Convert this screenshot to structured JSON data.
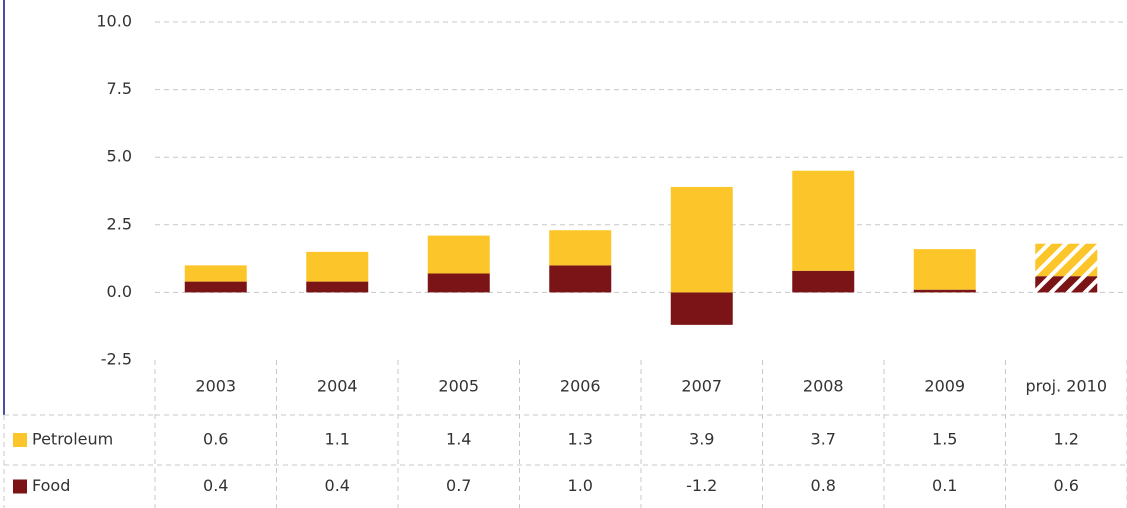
{
  "chart_data": {
    "type": "stacked-bar",
    "categories": [
      "2003",
      "2004",
      "2005",
      "2006",
      "2007",
      "2008",
      "2009",
      "proj. 2010"
    ],
    "series": [
      {
        "name": "Petroleum",
        "color": "#fcc62a",
        "values": [
          0.6,
          1.1,
          1.4,
          1.3,
          3.9,
          3.7,
          1.5,
          1.2
        ]
      },
      {
        "name": "Food",
        "color": "#7b1416",
        "values": [
          0.4,
          0.4,
          0.7,
          1.0,
          -1.2,
          0.8,
          0.1,
          0.6
        ],
        "value_labels": [
          "0.4",
          "0.4",
          "0.7",
          "1.0",
          "-1.2",
          "0.8",
          "0.1",
          "0.6"
        ]
      }
    ],
    "hatched": [
      false,
      false,
      false,
      false,
      false,
      false,
      false,
      true
    ],
    "ylim": [
      -2.5,
      10
    ],
    "yticks": [
      {
        "value": 10,
        "label": "10.0"
      },
      7.5,
      {
        "value": 5,
        "label": "5.0"
      },
      2.5,
      {
        "value": 0,
        "label": "0.0"
      },
      -2.5
    ],
    "grid": true
  }
}
